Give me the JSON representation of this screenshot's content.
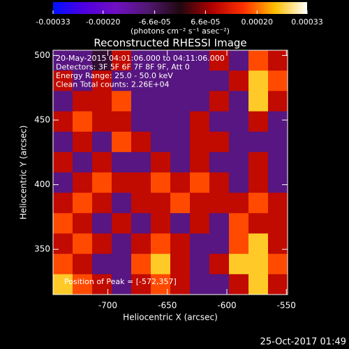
{
  "chart_data": {
    "type": "image",
    "title": "Reconstructed RHESSI Image",
    "colorbar_label": "(photons cm⁻² s⁻¹ asec⁻²)",
    "xlabel": "Heliocentric X (arcsec)",
    "ylabel": "Heliocentric Y (arcsec)",
    "xlim": [
      -746,
      -549
    ],
    "ylim": [
      315,
      504
    ],
    "xticks": [
      -700,
      -650,
      -600,
      -550
    ],
    "yticks": [
      350,
      400,
      450,
      500
    ],
    "zlim": [
      -0.00033,
      0.00033
    ],
    "zticks": [
      -0.00033,
      {
        "value": -0.0002,
        "label": "-0.00020"
      },
      {
        "value": -6.6e-05,
        "label": "-6.6e-05"
      },
      {
        "value": 6.6e-05,
        "label": "6.6e-05"
      },
      {
        "value": 0.0002,
        "label": "0.00020"
      },
      0.00033
    ],
    "colormap": [
      "#0010ff",
      "#5000e0",
      "#7010c0",
      "#501870",
      "#200810",
      "#b00000",
      "#ff3000",
      "#ffc000",
      "#ffffff"
    ],
    "annotations": [
      "20-May-2015 04:01:06.000 to 04:11:06.000",
      "Detectors: 3F 5F 6F 7F 8F 9F, Att 0",
      "Energy Range: 25.0 - 50.0 keV",
      "Clean     Total counts: 2.26E+04"
    ],
    "peak_label": "Position of Peak = [-572,357]",
    "footer": "25-Oct-2017 01:49",
    "z": [
      [
        -0.0001,
        -0.0001,
        -3e-05,
        0.0001,
        -0.0001,
        -0.0001,
        -0.0001,
        -0.0001,
        0.0001,
        -0.0001,
        0.00018,
        0.0001
      ],
      [
        0.0001,
        -0.0001,
        0.0001,
        -0.0001,
        -0.0001,
        -0.0001,
        -0.0001,
        -0.0001,
        -0.0001,
        0.0001,
        0.00026,
        0.00018
      ],
      [
        -0.0001,
        0.0001,
        0.0001,
        0.00018,
        -0.0001,
        -0.0001,
        -0.0001,
        -0.0001,
        0.0001,
        -0.0001,
        0.00026,
        0.0001
      ],
      [
        0.0001,
        0.00018,
        0.0001,
        0.0001,
        -0.0001,
        -0.0001,
        -0.0001,
        0.0001,
        -0.0001,
        -0.0001,
        0.0001,
        -0.0001
      ],
      [
        -0.0001,
        0.0001,
        -0.0001,
        0.00018,
        0.0001,
        -0.0001,
        -0.0001,
        0.0001,
        0.0001,
        -0.0001,
        -0.0001,
        -0.0001
      ],
      [
        0.0001,
        -0.0001,
        0.0001,
        -0.0001,
        -0.0001,
        0.0001,
        -0.0001,
        0.0001,
        -0.0001,
        -0.0001,
        0.0001,
        -0.0001
      ],
      [
        -0.0001,
        0.0001,
        0.00018,
        0.0001,
        0.0001,
        0.00018,
        0.0001,
        0.00018,
        0.0001,
        -0.0001,
        0.0001,
        -0.0001
      ],
      [
        0.0001,
        0.00018,
        0.0001,
        -0.0001,
        0.0001,
        0.0001,
        0.00018,
        0.0001,
        0.0001,
        0.0001,
        0.00018,
        0.0001
      ],
      [
        0.00018,
        0.0001,
        -0.0001,
        0.0001,
        -0.0001,
        0.0001,
        -0.0001,
        0.0001,
        -0.0001,
        0.00018,
        0.0001,
        0.0001
      ],
      [
        0.0001,
        0.00018,
        0.0001,
        -0.0001,
        0.0001,
        0.00018,
        0.0001,
        -0.0001,
        -0.0001,
        0.00018,
        0.00026,
        0.0001
      ],
      [
        0.00018,
        0.0001,
        -0.0001,
        -0.0001,
        0.00018,
        0.00026,
        0.0001,
        -0.0001,
        0.0001,
        0.00026,
        0.00026,
        0.00018
      ],
      [
        0.00026,
        0.00018,
        0.0001,
        -0.0001,
        0.0001,
        0.00018,
        0.0001,
        -0.0001,
        -0.0001,
        0.0001,
        0.00026,
        0.0001
      ]
    ]
  }
}
